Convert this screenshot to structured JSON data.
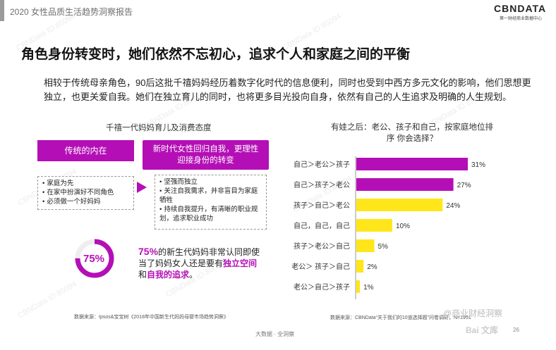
{
  "header": {
    "report_title": "2020 女性品质生活趋势洞察报告",
    "logo": "CBNDATA",
    "logo_sub": "第一财经商业数据中心"
  },
  "headline": "角色身份转变时，她们依然不忘初心，追求个人和家庭之间的平衡",
  "body_text": "相较于传统母亲角色，90后这批千禧妈妈经历着数字化时代的信息便利，同时也受到中西方多元文化的影响，他们思想更独立，也更关爱自我。她们在独立育儿的同时，也将更多目光投向自身，依然有自己的人生追求及明确的人生规划。",
  "left_panel": {
    "title": "千禧一代妈妈育儿及消费态度",
    "pill_left": "传统的内在",
    "pill_right_line1": "新时代女性回归自我，更理性",
    "pill_right_line2": "迎接身份的转变",
    "left_items": [
      "家庭为先",
      "在家中扮演好不同角色",
      "必须做一个好妈妈"
    ],
    "right_items": [
      "坚强而独立",
      "关注自我需求，并非盲目为家庭牺牲",
      "持续自我提升，有清晰的职业规划，追求职业成功"
    ],
    "ring_value": 75,
    "ring_label": "75%",
    "stat_big": "75%",
    "stat_text1": "的新生代妈妈非常认同即使当了妈妈女人还是要有",
    "stat_hl1": "独立空间",
    "stat_text2": "和",
    "stat_hl2": "自我的追求",
    "stat_text3": "。",
    "source": "数据来源：Ipsos&宝宝树《2018年中国新生代妈妈母婴市场趋势洞察》"
  },
  "chart_data": {
    "type": "bar",
    "orientation": "horizontal",
    "title": "有娃之后：老公、孩子和自己，按家庭地位排序 你会选择？",
    "categories": [
      "自己＞老公＞孩子",
      "自己＞孩子＞老公",
      "孩子＞自己＞老公",
      "自己，自己，自己",
      "孩子＞老公＞自己",
      "老公＞ 孩子＞自己",
      "老公＞自己＞孩子"
    ],
    "values": [
      31,
      27,
      24,
      10,
      5,
      2,
      1
    ],
    "value_labels": [
      "31%",
      "27%",
      "24%",
      "10%",
      "5%",
      "2%",
      "1%"
    ],
    "xlim": [
      0,
      31
    ],
    "colors": [
      "#b40fb6",
      "#b40fb6",
      "#ffe61a",
      "#ffe61a",
      "#ffe61a",
      "#ffe61a",
      "#ffe61a"
    ],
    "grid": false,
    "source": "数据来源：CBNData“关于我们的10道选择题”问卷调研，N=1951"
  },
  "footer": {
    "center": "大数据 · 全洞察",
    "watermark_brand": "@商业财经洞察",
    "baidu": "Bai 文库",
    "page": "26"
  },
  "watermark": "CBNData ID:85094"
}
